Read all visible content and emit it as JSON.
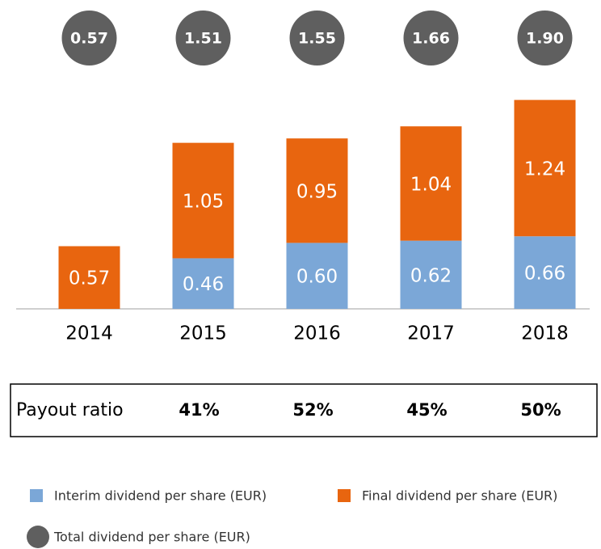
{
  "chart_data": {
    "type": "bar",
    "stacked": true,
    "categories": [
      "2014",
      "2015",
      "2016",
      "2017",
      "2018"
    ],
    "series": [
      {
        "name": "Interim dividend per share (EUR)",
        "color": "#7ba7d7",
        "values": [
          null,
          0.46,
          0.6,
          0.62,
          0.66
        ],
        "value_labels": [
          null,
          "0.46",
          "0.60",
          "0.62",
          "0.66"
        ]
      },
      {
        "name": "Final dividend per share (EUR)",
        "color": "#e8650f",
        "values": [
          0.57,
          1.05,
          0.95,
          1.04,
          1.24
        ]
      }
    ],
    "totals": {
      "name": "Total dividend per share (EUR)",
      "color": "#5f5f5f",
      "values": [
        0.57,
        1.51,
        1.55,
        1.66,
        1.9
      ],
      "value_labels": [
        "0.57",
        "1.51",
        "1.55",
        "1.66",
        "1.90"
      ]
    },
    "payout_ratio": {
      "label": "Payout ratio",
      "values": [
        null,
        41,
        52,
        45,
        50
      ],
      "value_labels": [
        null,
        "41%",
        "52%",
        "45%",
        "50%"
      ]
    },
    "ylim": [
      0,
      2
    ]
  }
}
